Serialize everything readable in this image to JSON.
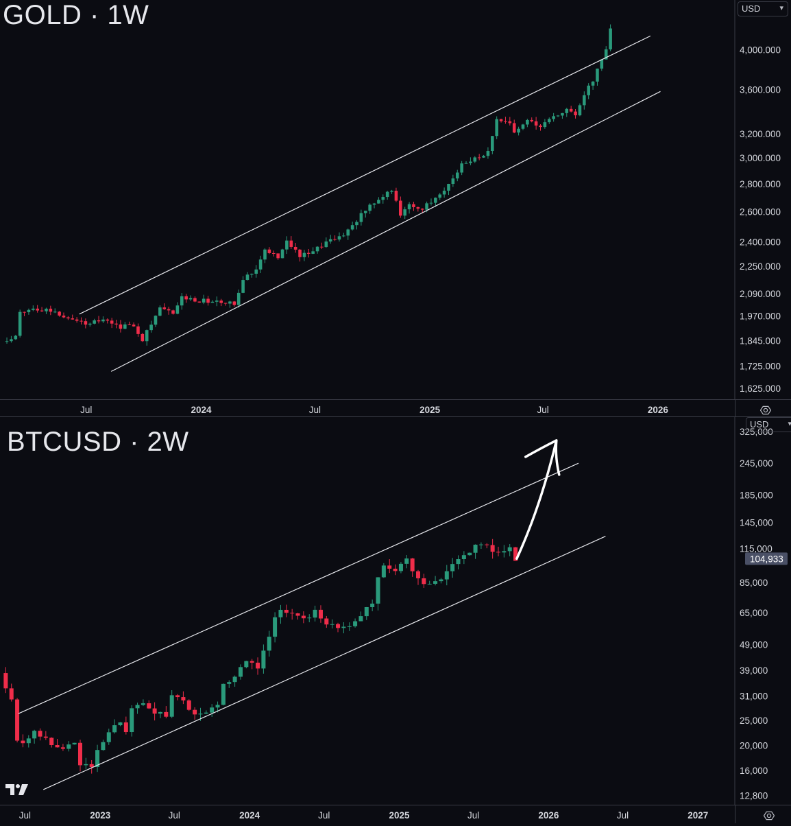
{
  "charts": {
    "gold": {
      "title": "GOLD · 1W",
      "currency": "USD",
      "y_ticks": [
        "4,000.000",
        "3,600.000",
        "3,200.000",
        "3,000.000",
        "2,800.000",
        "2,600.000",
        "2,400.000",
        "2,250.000",
        "2,090.000",
        "1,970.000",
        "1,845.000",
        "1,725.000",
        "1,625.000"
      ],
      "x_ticks": [
        "Jul",
        "2024",
        "Jul",
        "2025",
        "Jul",
        "2026"
      ]
    },
    "btc": {
      "title": "BTCUSD · 2W",
      "currency": "USD",
      "y_ticks": [
        "325,000",
        "245,000",
        "185,000",
        "145,000",
        "115,000",
        "85,000",
        "65,000",
        "49,000",
        "39,000",
        "31,000",
        "25,000",
        "20,000",
        "16,000",
        "12,800"
      ],
      "last_price": "104,933",
      "x_ticks": [
        "Jul",
        "2023",
        "Jul",
        "2024",
        "Jul",
        "2025",
        "Jul",
        "2026",
        "Jul",
        "2027"
      ]
    }
  },
  "chart_data": [
    {
      "type": "candlestick",
      "title": "GOLD · 1W",
      "y_scale": "log",
      "ylim": [
        1590,
        4500
      ],
      "x_range": [
        "2023-02-13",
        "2026-05-04"
      ],
      "x_tick_dates": [
        "2023-07-01",
        "2024-01-01",
        "2024-07-01",
        "2025-01-01",
        "2025-07-01",
        "2026-01-01"
      ],
      "up_color": "#2a9a7b",
      "down_color": "#ef2d4a",
      "channel_lines": [
        {
          "start": [
            "2023-06-20",
            1980
          ],
          "end": [
            "2025-12-20",
            4150
          ]
        },
        {
          "start": [
            "2023-08-10",
            1700
          ],
          "end": [
            "2026-01-05",
            3580
          ]
        }
      ],
      "close_path": [
        [
          "2023-02-17",
          1840
        ],
        [
          "2023-03-10",
          1865
        ],
        [
          "2023-03-17",
          1990
        ],
        [
          "2023-04-07",
          2010
        ],
        [
          "2023-04-28",
          2005
        ],
        [
          "2023-05-19",
          1980
        ],
        [
          "2023-06-09",
          1960
        ],
        [
          "2023-06-30",
          1925
        ],
        [
          "2023-07-14",
          1955
        ],
        [
          "2023-08-04",
          1945
        ],
        [
          "2023-08-25",
          1915
        ],
        [
          "2023-09-15",
          1925
        ],
        [
          "2023-09-29",
          1850
        ],
        [
          "2023-10-13",
          1935
        ],
        [
          "2023-10-27",
          2005
        ],
        [
          "2023-11-17",
          1985
        ],
        [
          "2023-12-01",
          2070
        ],
        [
          "2023-12-22",
          2055
        ],
        [
          "2024-01-12",
          2050
        ],
        [
          "2024-02-02",
          2040
        ],
        [
          "2024-02-23",
          2035
        ],
        [
          "2024-03-08",
          2180
        ],
        [
          "2024-03-29",
          2235
        ],
        [
          "2024-04-12",
          2360
        ],
        [
          "2024-05-03",
          2300
        ],
        [
          "2024-05-17",
          2410
        ],
        [
          "2024-06-07",
          2310
        ],
        [
          "2024-06-28",
          2330
        ],
        [
          "2024-07-19",
          2405
        ],
        [
          "2024-08-09",
          2430
        ],
        [
          "2024-08-30",
          2500
        ],
        [
          "2024-09-20",
          2620
        ],
        [
          "2024-10-18",
          2720
        ],
        [
          "2024-10-31",
          2750
        ],
        [
          "2024-11-08",
          2690
        ],
        [
          "2024-11-15",
          2560
        ],
        [
          "2024-11-29",
          2650
        ],
        [
          "2024-12-20",
          2620
        ],
        [
          "2025-01-10",
          2690
        ],
        [
          "2025-01-31",
          2800
        ],
        [
          "2025-02-21",
          2940
        ],
        [
          "2025-03-14",
          2990
        ],
        [
          "2025-04-04",
          3040
        ],
        [
          "2025-04-18",
          3320
        ],
        [
          "2025-05-09",
          3280
        ],
        [
          "2025-05-16",
          3200
        ],
        [
          "2025-06-06",
          3310
        ],
        [
          "2025-06-27",
          3270
        ],
        [
          "2025-07-18",
          3350
        ],
        [
          "2025-08-08",
          3400
        ],
        [
          "2025-08-22",
          3370
        ],
        [
          "2025-09-05",
          3560
        ],
        [
          "2025-09-19",
          3690
        ],
        [
          "2025-10-03",
          3880
        ],
        [
          "2025-10-10",
          4020
        ],
        [
          "2025-10-17",
          4240
        ]
      ]
    },
    {
      "type": "candlestick",
      "title": "BTCUSD · 2W",
      "y_scale": "log",
      "ylim": [
        11800,
        360000
      ],
      "x_range": [
        "2022-05-01",
        "2027-04-01"
      ],
      "x_tick_dates": [
        "2022-07-01",
        "2023-01-01",
        "2023-07-01",
        "2024-01-01",
        "2024-07-01",
        "2025-01-01",
        "2025-07-01",
        "2026-01-01",
        "2026-07-01",
        "2027-01-01"
      ],
      "last_price": 104933,
      "up_color": "#2a9a7b",
      "down_color": "#ef2d4a",
      "channel_lines": [
        {
          "start": [
            "2022-06-15",
            26500
          ],
          "end": [
            "2026-03-15",
            245000
          ]
        },
        {
          "start": [
            "2022-08-15",
            13500
          ],
          "end": [
            "2026-05-20",
            128000
          ]
        }
      ],
      "arrow": {
        "from": [
          "2025-10-15",
          104933
        ],
        "to": [
          "2026-01-20",
          300000
        ]
      },
      "close_path": [
        [
          "2022-05-01",
          38000
        ],
        [
          "2022-05-29",
          29700
        ],
        [
          "2022-06-12",
          20500
        ],
        [
          "2022-07-10",
          20800
        ],
        [
          "2022-07-24",
          23300
        ],
        [
          "2022-08-21",
          21000
        ],
        [
          "2022-09-18",
          19300
        ],
        [
          "2022-10-16",
          19700
        ],
        [
          "2022-10-30",
          20500
        ],
        [
          "2022-11-13",
          16500
        ],
        [
          "2022-12-11",
          16800
        ],
        [
          "2023-01-08",
          21000
        ],
        [
          "2023-01-22",
          23000
        ],
        [
          "2023-02-19",
          24000
        ],
        [
          "2023-03-05",
          22000
        ],
        [
          "2023-03-19",
          28000
        ],
        [
          "2023-04-16",
          29000
        ],
        [
          "2023-05-14",
          27000
        ],
        [
          "2023-06-11",
          26000
        ],
        [
          "2023-06-25",
          30500
        ],
        [
          "2023-07-23",
          29500
        ],
        [
          "2023-08-20",
          26000
        ],
        [
          "2023-09-17",
          27000
        ],
        [
          "2023-10-15",
          29000
        ],
        [
          "2023-10-29",
          34500
        ],
        [
          "2023-11-26",
          37500
        ],
        [
          "2023-12-24",
          42500
        ],
        [
          "2024-01-21",
          40000
        ],
        [
          "2024-02-18",
          52000
        ],
        [
          "2024-03-03",
          62000
        ],
        [
          "2024-03-17",
          68000
        ],
        [
          "2024-04-14",
          64000
        ],
        [
          "2024-05-12",
          61500
        ],
        [
          "2024-06-09",
          66000
        ],
        [
          "2024-07-07",
          58000
        ],
        [
          "2024-08-04",
          57000
        ],
        [
          "2024-09-01",
          58500
        ],
        [
          "2024-09-29",
          64000
        ],
        [
          "2024-10-27",
          70000
        ],
        [
          "2024-11-10",
          90000
        ],
        [
          "2024-11-24",
          98000
        ],
        [
          "2024-12-22",
          95000
        ],
        [
          "2025-01-19",
          105000
        ],
        [
          "2025-02-16",
          87000
        ],
        [
          "2025-03-02",
          82000
        ],
        [
          "2025-03-30",
          84000
        ],
        [
          "2025-04-27",
          95000
        ],
        [
          "2025-05-25",
          107000
        ],
        [
          "2025-06-22",
          108000
        ],
        [
          "2025-07-06",
          118000
        ],
        [
          "2025-08-03",
          117000
        ],
        [
          "2025-08-31",
          111000
        ],
        [
          "2025-09-28",
          114000
        ],
        [
          "2025-10-12",
          104933
        ]
      ]
    }
  ]
}
